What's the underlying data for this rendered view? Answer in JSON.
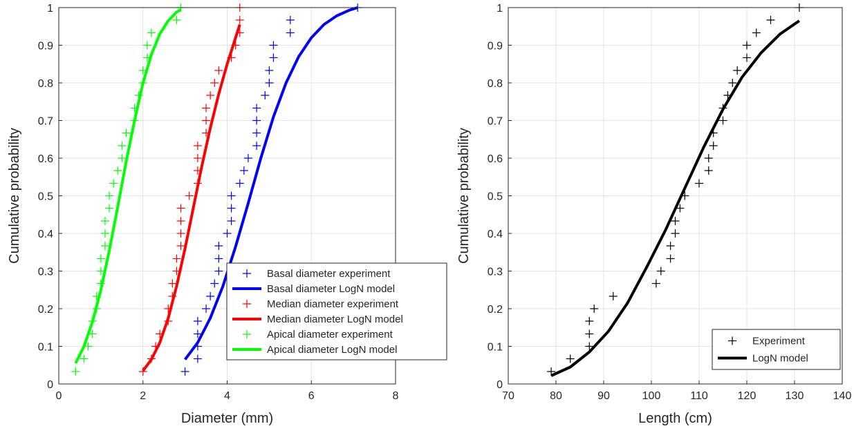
{
  "chart_data": [
    {
      "type": "line",
      "xlabel": "Diameter (mm)",
      "ylabel": "Cumulative probability",
      "xlim": [
        0,
        8
      ],
      "ylim": [
        0,
        1
      ],
      "xticks": [
        "0",
        "2",
        "4",
        "6",
        "8"
      ],
      "yticks": [
        "0",
        "0.1",
        "0.2",
        "0.3",
        "0.4",
        "0.5",
        "0.6",
        "0.7",
        "0.8",
        "0.9",
        "1"
      ],
      "grid": true,
      "legend_position": "bottom-right",
      "series": [
        {
          "name": "Basal diameter experiment",
          "kind": "marker",
          "color": "#0000ff",
          "points": [
            [
              3.0,
              0.033
            ],
            [
              3.3,
              0.067
            ],
            [
              3.3,
              0.1
            ],
            [
              3.3,
              0.133
            ],
            [
              3.3,
              0.167
            ],
            [
              3.5,
              0.2
            ],
            [
              3.6,
              0.233
            ],
            [
              3.7,
              0.267
            ],
            [
              3.8,
              0.3
            ],
            [
              3.8,
              0.333
            ],
            [
              3.8,
              0.367
            ],
            [
              4.0,
              0.4
            ],
            [
              4.1,
              0.433
            ],
            [
              4.1,
              0.467
            ],
            [
              4.1,
              0.5
            ],
            [
              4.3,
              0.533
            ],
            [
              4.4,
              0.567
            ],
            [
              4.5,
              0.6
            ],
            [
              4.7,
              0.633
            ],
            [
              4.7,
              0.667
            ],
            [
              4.7,
              0.7
            ],
            [
              4.7,
              0.733
            ],
            [
              4.9,
              0.767
            ],
            [
              5.0,
              0.8
            ],
            [
              5.0,
              0.833
            ],
            [
              5.1,
              0.867
            ],
            [
              5.1,
              0.9
            ],
            [
              5.5,
              0.933
            ],
            [
              5.5,
              0.967
            ],
            [
              7.1,
              1.0
            ]
          ]
        },
        {
          "name": "Basal diameter LogN model",
          "kind": "line",
          "color": "#0000ff",
          "points": [
            [
              3.0,
              0.065
            ],
            [
              3.3,
              0.11
            ],
            [
              3.6,
              0.175
            ],
            [
              3.9,
              0.26
            ],
            [
              4.2,
              0.365
            ],
            [
              4.5,
              0.48
            ],
            [
              4.8,
              0.6
            ],
            [
              5.1,
              0.71
            ],
            [
              5.4,
              0.8
            ],
            [
              5.7,
              0.87
            ],
            [
              6.0,
              0.92
            ],
            [
              6.3,
              0.955
            ],
            [
              6.6,
              0.978
            ],
            [
              6.9,
              0.993
            ],
            [
              7.1,
              1.0
            ]
          ]
        },
        {
          "name": "Median diameter experiment",
          "kind": "marker",
          "color": "#ff0000",
          "points": [
            [
              2.0,
              0.033
            ],
            [
              2.2,
              0.067
            ],
            [
              2.3,
              0.1
            ],
            [
              2.4,
              0.133
            ],
            [
              2.6,
              0.167
            ],
            [
              2.6,
              0.2
            ],
            [
              2.7,
              0.233
            ],
            [
              2.7,
              0.267
            ],
            [
              2.8,
              0.3
            ],
            [
              2.8,
              0.333
            ],
            [
              2.9,
              0.367
            ],
            [
              2.9,
              0.4
            ],
            [
              2.9,
              0.433
            ],
            [
              2.9,
              0.467
            ],
            [
              3.1,
              0.5
            ],
            [
              3.3,
              0.533
            ],
            [
              3.3,
              0.567
            ],
            [
              3.3,
              0.6
            ],
            [
              3.3,
              0.633
            ],
            [
              3.5,
              0.667
            ],
            [
              3.5,
              0.7
            ],
            [
              3.5,
              0.733
            ],
            [
              3.6,
              0.767
            ],
            [
              3.7,
              0.8
            ],
            [
              3.8,
              0.833
            ],
            [
              4.1,
              0.867
            ],
            [
              4.2,
              0.9
            ],
            [
              4.3,
              0.933
            ],
            [
              4.3,
              0.967
            ],
            [
              4.3,
              1.0
            ]
          ]
        },
        {
          "name": "Median diameter LogN model",
          "kind": "line",
          "color": "#ff0000",
          "points": [
            [
              2.0,
              0.035
            ],
            [
              2.2,
              0.065
            ],
            [
              2.4,
              0.11
            ],
            [
              2.6,
              0.175
            ],
            [
              2.8,
              0.26
            ],
            [
              3.0,
              0.36
            ],
            [
              3.2,
              0.47
            ],
            [
              3.4,
              0.58
            ],
            [
              3.6,
              0.68
            ],
            [
              3.8,
              0.77
            ],
            [
              4.0,
              0.85
            ],
            [
              4.2,
              0.92
            ],
            [
              4.3,
              0.955
            ]
          ]
        },
        {
          "name": "Apical diameter experiment",
          "kind": "marker",
          "color": "#00ff00",
          "points": [
            [
              0.4,
              0.033
            ],
            [
              0.6,
              0.067
            ],
            [
              0.7,
              0.1
            ],
            [
              0.8,
              0.133
            ],
            [
              0.8,
              0.167
            ],
            [
              0.9,
              0.2
            ],
            [
              0.9,
              0.233
            ],
            [
              1.0,
              0.267
            ],
            [
              1.0,
              0.3
            ],
            [
              1.0,
              0.333
            ],
            [
              1.1,
              0.367
            ],
            [
              1.1,
              0.4
            ],
            [
              1.1,
              0.433
            ],
            [
              1.2,
              0.467
            ],
            [
              1.2,
              0.5
            ],
            [
              1.3,
              0.533
            ],
            [
              1.4,
              0.567
            ],
            [
              1.5,
              0.6
            ],
            [
              1.5,
              0.633
            ],
            [
              1.6,
              0.667
            ],
            [
              1.8,
              0.7
            ],
            [
              1.8,
              0.733
            ],
            [
              1.9,
              0.767
            ],
            [
              2.0,
              0.8
            ],
            [
              2.0,
              0.833
            ],
            [
              2.1,
              0.867
            ],
            [
              2.1,
              0.9
            ],
            [
              2.2,
              0.933
            ],
            [
              2.8,
              0.967
            ],
            [
              2.9,
              1.0
            ]
          ]
        },
        {
          "name": "Apical diameter LogN model",
          "kind": "line",
          "color": "#00ff00",
          "points": [
            [
              0.4,
              0.055
            ],
            [
              0.6,
              0.1
            ],
            [
              0.8,
              0.165
            ],
            [
              1.0,
              0.25
            ],
            [
              1.2,
              0.355
            ],
            [
              1.4,
              0.47
            ],
            [
              1.6,
              0.59
            ],
            [
              1.8,
              0.7
            ],
            [
              2.0,
              0.8
            ],
            [
              2.2,
              0.875
            ],
            [
              2.4,
              0.93
            ],
            [
              2.6,
              0.965
            ],
            [
              2.8,
              0.988
            ],
            [
              2.9,
              0.995
            ]
          ]
        }
      ]
    },
    {
      "type": "line",
      "xlabel": "Length (cm)",
      "ylabel": "Cumulative probability",
      "xlim": [
        70,
        140
      ],
      "ylim": [
        0,
        1
      ],
      "xticks": [
        "70",
        "80",
        "90",
        "100",
        "110",
        "120",
        "130",
        "140"
      ],
      "yticks": [
        "0",
        "0.1",
        "0.2",
        "0.3",
        "0.4",
        "0.5",
        "0.6",
        "0.7",
        "0.8",
        "0.9",
        "1"
      ],
      "grid": true,
      "legend_position": "bottom-right",
      "series": [
        {
          "name": "Experiment",
          "kind": "marker",
          "color": "#000000",
          "points": [
            [
              79,
              0.033
            ],
            [
              83,
              0.067
            ],
            [
              87,
              0.1
            ],
            [
              87,
              0.133
            ],
            [
              87,
              0.167
            ],
            [
              88,
              0.2
            ],
            [
              92,
              0.233
            ],
            [
              101,
              0.267
            ],
            [
              102,
              0.3
            ],
            [
              104,
              0.333
            ],
            [
              104,
              0.367
            ],
            [
              105,
              0.4
            ],
            [
              105,
              0.433
            ],
            [
              106,
              0.467
            ],
            [
              107,
              0.5
            ],
            [
              110,
              0.533
            ],
            [
              112,
              0.567
            ],
            [
              112,
              0.6
            ],
            [
              113,
              0.633
            ],
            [
              113,
              0.667
            ],
            [
              115,
              0.7
            ],
            [
              115,
              0.733
            ],
            [
              116,
              0.767
            ],
            [
              117,
              0.8
            ],
            [
              118,
              0.833
            ],
            [
              120,
              0.867
            ],
            [
              120,
              0.9
            ],
            [
              122,
              0.933
            ],
            [
              125,
              0.967
            ],
            [
              131,
              1.0
            ]
          ]
        },
        {
          "name": "LogN model",
          "kind": "line",
          "color": "#000000",
          "points": [
            [
              79,
              0.022
            ],
            [
              83,
              0.045
            ],
            [
              87,
              0.085
            ],
            [
              91,
              0.14
            ],
            [
              95,
              0.215
            ],
            [
              99,
              0.31
            ],
            [
              103,
              0.41
            ],
            [
              107,
              0.52
            ],
            [
              111,
              0.63
            ],
            [
              115,
              0.73
            ],
            [
              119,
              0.815
            ],
            [
              123,
              0.88
            ],
            [
              127,
              0.93
            ],
            [
              131,
              0.965
            ]
          ]
        }
      ]
    }
  ]
}
